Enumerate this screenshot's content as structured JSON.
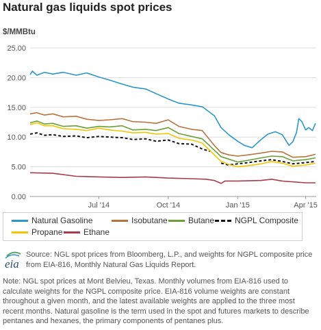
{
  "title": "Natural gas liquids spot prices",
  "unit_label": "$/MMBtu",
  "chart_data": {
    "type": "line",
    "title": "Natural gas liquids spot prices",
    "ylabel": "$/MMBtu",
    "ylim": [
      0,
      25
    ],
    "yticks": [
      "25.00",
      "20.00",
      "15.00",
      "10.00",
      "5.00",
      "0.00"
    ],
    "xlim": [
      "2014-04-01",
      "2015-04-15"
    ],
    "xticks": [
      {
        "label": "Jul '14",
        "date": "2014-07-01"
      },
      {
        "label": "Oct '14",
        "date": "2014-10-01"
      },
      {
        "label": "Jan '15",
        "date": "2015-01-01"
      },
      {
        "label": "Apr '15",
        "date": "2015-04-01"
      }
    ],
    "grid": "horizontal",
    "legend_position": "bottom",
    "series": [
      {
        "name": "Natural Gasoline",
        "color": "#2b96c8",
        "style": "solid",
        "points": [
          [
            "2014-04-01",
            20.5
          ],
          [
            "2014-04-04",
            21.1
          ],
          [
            "2014-04-10",
            20.4
          ],
          [
            "2014-04-20",
            20.9
          ],
          [
            "2014-05-01",
            20.6
          ],
          [
            "2014-05-15",
            20.9
          ],
          [
            "2014-06-01",
            20.4
          ],
          [
            "2014-06-15",
            20.8
          ],
          [
            "2014-07-01",
            20.1
          ],
          [
            "2014-07-15",
            19.6
          ],
          [
            "2014-08-01",
            18.9
          ],
          [
            "2014-08-15",
            18.4
          ],
          [
            "2014-09-01",
            18.1
          ],
          [
            "2014-09-15",
            17.3
          ],
          [
            "2014-10-01",
            16.4
          ],
          [
            "2014-10-15",
            15.7
          ],
          [
            "2014-11-01",
            15.4
          ],
          [
            "2014-11-15",
            15.1
          ],
          [
            "2014-12-01",
            13.6
          ],
          [
            "2014-12-10",
            11.6
          ],
          [
            "2014-12-20",
            10.4
          ],
          [
            "2015-01-01",
            9.3
          ],
          [
            "2015-01-10",
            8.6
          ],
          [
            "2015-01-20",
            8.2
          ],
          [
            "2015-02-01",
            9.6
          ],
          [
            "2015-02-10",
            10.5
          ],
          [
            "2015-02-20",
            10.9
          ],
          [
            "2015-03-01",
            10.4
          ],
          [
            "2015-03-10",
            8.6
          ],
          [
            "2015-03-15",
            9.2
          ],
          [
            "2015-03-20",
            10.8
          ],
          [
            "2015-03-23",
            13.1
          ],
          [
            "2015-03-27",
            12.6
          ],
          [
            "2015-04-01",
            11.2
          ],
          [
            "2015-04-05",
            11.6
          ],
          [
            "2015-04-10",
            11.1
          ],
          [
            "2015-04-14",
            12.3
          ]
        ]
      },
      {
        "name": "Isobutane",
        "color": "#b8733a",
        "style": "solid",
        "points": [
          [
            "2014-04-01",
            13.9
          ],
          [
            "2014-04-10",
            14.1
          ],
          [
            "2014-04-20",
            13.7
          ],
          [
            "2014-05-01",
            13.9
          ],
          [
            "2014-05-15",
            13.4
          ],
          [
            "2014-06-01",
            13.5
          ],
          [
            "2014-06-15",
            13.0
          ],
          [
            "2014-07-01",
            12.8
          ],
          [
            "2014-07-15",
            12.9
          ],
          [
            "2014-08-01",
            13.1
          ],
          [
            "2014-08-15",
            12.6
          ],
          [
            "2014-09-01",
            12.5
          ],
          [
            "2014-09-15",
            12.3
          ],
          [
            "2014-10-01",
            12.9
          ],
          [
            "2014-10-15",
            11.8
          ],
          [
            "2014-11-01",
            11.3
          ],
          [
            "2014-11-15",
            11.1
          ],
          [
            "2014-12-01",
            8.6
          ],
          [
            "2014-12-10",
            7.4
          ],
          [
            "2014-12-20",
            7.0
          ],
          [
            "2015-01-01",
            6.8
          ],
          [
            "2015-01-15",
            7.0
          ],
          [
            "2015-02-01",
            7.3
          ],
          [
            "2015-02-15",
            7.6
          ],
          [
            "2015-03-01",
            7.5
          ],
          [
            "2015-03-15",
            6.6
          ],
          [
            "2015-04-01",
            6.7
          ],
          [
            "2015-04-14",
            7.1
          ]
        ]
      },
      {
        "name": "Butane",
        "color": "#6a9f35",
        "style": "solid",
        "points": [
          [
            "2014-04-01",
            12.4
          ],
          [
            "2014-04-10",
            12.7
          ],
          [
            "2014-04-20",
            12.2
          ],
          [
            "2014-05-01",
            12.3
          ],
          [
            "2014-05-15",
            11.8
          ],
          [
            "2014-06-01",
            11.9
          ],
          [
            "2014-06-15",
            11.5
          ],
          [
            "2014-07-01",
            11.8
          ],
          [
            "2014-07-15",
            11.7
          ],
          [
            "2014-08-01",
            11.9
          ],
          [
            "2014-08-15",
            11.2
          ],
          [
            "2014-09-01",
            11.3
          ],
          [
            "2014-09-15",
            11.1
          ],
          [
            "2014-10-01",
            11.6
          ],
          [
            "2014-10-15",
            10.6
          ],
          [
            "2014-11-01",
            10.1
          ],
          [
            "2014-11-15",
            9.7
          ],
          [
            "2014-12-01",
            7.8
          ],
          [
            "2014-12-10",
            6.7
          ],
          [
            "2014-12-20",
            6.3
          ],
          [
            "2015-01-01",
            5.8
          ],
          [
            "2015-01-15",
            6.1
          ],
          [
            "2015-02-01",
            6.5
          ],
          [
            "2015-02-15",
            6.8
          ],
          [
            "2015-03-01",
            6.7
          ],
          [
            "2015-03-15",
            6.0
          ],
          [
            "2015-04-01",
            6.2
          ],
          [
            "2015-04-14",
            6.5
          ]
        ]
      },
      {
        "name": "NGPL Composite",
        "color": "#111111",
        "style": "dashed",
        "points": [
          [
            "2014-04-01",
            10.5
          ],
          [
            "2014-04-10",
            10.7
          ],
          [
            "2014-04-20",
            10.3
          ],
          [
            "2014-05-01",
            10.4
          ],
          [
            "2014-05-15",
            10.1
          ],
          [
            "2014-06-01",
            10.2
          ],
          [
            "2014-06-15",
            9.9
          ],
          [
            "2014-07-01",
            10.1
          ],
          [
            "2014-07-15",
            10.0
          ],
          [
            "2014-08-01",
            9.9
          ],
          [
            "2014-08-15",
            9.6
          ],
          [
            "2014-09-01",
            9.7
          ],
          [
            "2014-09-15",
            9.3
          ],
          [
            "2014-10-01",
            9.5
          ],
          [
            "2014-10-15",
            8.9
          ],
          [
            "2014-11-01",
            8.8
          ],
          [
            "2014-11-15",
            8.0
          ],
          [
            "2014-11-25",
            7.6
          ]
        ]
      },
      {
        "name": "NGPL Composite",
        "color": "#111111",
        "style": "dashed",
        "show_in_legend": false,
        "points": [
          [
            "2014-12-10",
            5.6
          ],
          [
            "2014-12-20",
            5.3
          ],
          [
            "2015-01-01",
            5.5
          ],
          [
            "2015-01-15",
            5.7
          ],
          [
            "2015-02-01",
            6.0
          ],
          [
            "2015-02-15",
            6.2
          ],
          [
            "2015-03-01",
            5.9
          ],
          [
            "2015-03-15",
            5.5
          ],
          [
            "2015-04-01",
            5.7
          ],
          [
            "2015-04-14",
            5.9
          ]
        ]
      },
      {
        "name": "Propane",
        "color": "#f2c500",
        "style": "solid",
        "points": [
          [
            "2014-04-01",
            12.1
          ],
          [
            "2014-04-10",
            12.4
          ],
          [
            "2014-04-20",
            11.9
          ],
          [
            "2014-05-01",
            11.9
          ],
          [
            "2014-05-15",
            11.4
          ],
          [
            "2014-06-01",
            11.3
          ],
          [
            "2014-06-15",
            11.1
          ],
          [
            "2014-07-01",
            11.5
          ],
          [
            "2014-07-15",
            11.2
          ],
          [
            "2014-08-01",
            11.0
          ],
          [
            "2014-08-15",
            10.7
          ],
          [
            "2014-09-01",
            10.8
          ],
          [
            "2014-09-15",
            10.5
          ],
          [
            "2014-10-01",
            10.6
          ],
          [
            "2014-10-15",
            9.8
          ],
          [
            "2014-11-01",
            9.5
          ],
          [
            "2014-11-15",
            9.0
          ],
          [
            "2014-12-01",
            7.0
          ],
          [
            "2014-12-10",
            5.9
          ],
          [
            "2014-12-20",
            5.4
          ],
          [
            "2015-01-01",
            5.0
          ],
          [
            "2015-01-15",
            5.2
          ],
          [
            "2015-02-01",
            5.5
          ],
          [
            "2015-02-15",
            5.9
          ],
          [
            "2015-03-01",
            5.6
          ],
          [
            "2015-03-15",
            5.1
          ],
          [
            "2015-04-01",
            5.3
          ],
          [
            "2015-04-14",
            5.6
          ]
        ]
      },
      {
        "name": "Ethane",
        "color": "#a83a4a",
        "style": "solid",
        "points": [
          [
            "2014-04-01",
            4.0
          ],
          [
            "2014-05-01",
            3.9
          ],
          [
            "2014-06-01",
            3.4
          ],
          [
            "2014-07-01",
            3.3
          ],
          [
            "2014-08-01",
            3.2
          ],
          [
            "2014-09-01",
            3.3
          ],
          [
            "2014-10-01",
            3.1
          ],
          [
            "2014-11-01",
            3.0
          ],
          [
            "2014-11-20",
            2.9
          ],
          [
            "2014-12-01",
            2.7
          ],
          [
            "2014-12-10",
            2.2
          ],
          [
            "2014-12-15",
            2.6
          ],
          [
            "2015-01-01",
            2.6
          ],
          [
            "2015-02-01",
            2.7
          ],
          [
            "2015-02-15",
            2.9
          ],
          [
            "2015-03-01",
            2.6
          ],
          [
            "2015-04-01",
            2.3
          ],
          [
            "2015-04-14",
            2.3
          ]
        ]
      }
    ]
  },
  "legend": [
    {
      "label": "Natural Gasoline",
      "color": "#2b96c8",
      "style": "solid"
    },
    {
      "label": "Isobutane",
      "color": "#b8733a",
      "style": "solid"
    },
    {
      "label": "Butane",
      "color": "#6a9f35",
      "style": "solid"
    },
    {
      "label": "NGPL Composite",
      "color": "#111111",
      "style": "dashed"
    },
    {
      "label": "Propane",
      "color": "#f2c500",
      "style": "solid"
    },
    {
      "label": "Ethane",
      "color": "#a83a4a",
      "style": "solid"
    }
  ],
  "logo": {
    "text": "eia",
    "icon": "eia-logo-icon"
  },
  "source": "Source: NGL spot prices from Bloomberg, L.P., and weights for NGPL composite price from EIA-816, Monthly Natural Gas Liquids Report.",
  "note": "Note: NGL spot prices at Mont Belvieu, Texas. Monthly volumes from EIA-816 used to calculate weights for the NGPL composite price. EIA-816 volume weights are constant throughout a given month, and the latest available weights are applied to the three most recent months. Natural gasoline is the term used in the spot and futures markets to describe pentanes and hexanes, the primary components of pentanes plus."
}
